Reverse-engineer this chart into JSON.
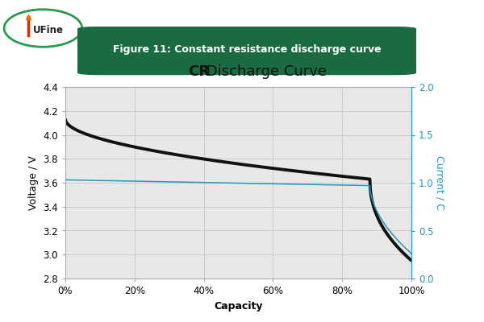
{
  "title_cr": "CR",
  "title_rest": " Discharge Curve",
  "xlabel": "Capacity",
  "ylabel_left": "Voltage / V",
  "ylabel_right": "Current / C",
  "xlim": [
    0,
    1
  ],
  "ylim_left": [
    2.8,
    4.4
  ],
  "ylim_right": [
    0.0,
    2.0
  ],
  "xtick_labels": [
    "0%",
    "20%",
    "40%",
    "60%",
    "80%",
    "100%"
  ],
  "xtick_positions": [
    0.0,
    0.2,
    0.4,
    0.6,
    0.8,
    1.0
  ],
  "ytick_left": [
    2.8,
    3.0,
    3.2,
    3.4,
    3.6,
    3.8,
    4.0,
    4.2,
    4.4
  ],
  "ytick_right": [
    0.0,
    0.5,
    1.0,
    1.5,
    2.0
  ],
  "voltage_color": "#111111",
  "current_color": "#2299BB",
  "grid_color": "#cccccc",
  "plot_bg_color": "#e8e8e8",
  "figure_bg_color": "#ffffff",
  "voltage_linewidth": 2.8,
  "current_linewidth": 1.1,
  "header_bg_color": "#1a6b42",
  "header_text": "Figure 11: Constant resistance discharge curve",
  "header_text_color": "#ffffff",
  "logo_text": "UFine",
  "logo_edge_color": "#2a9a50",
  "font_size_title": 13,
  "font_size_axis_label": 9,
  "font_size_tick": 8.5,
  "font_size_header": 9
}
